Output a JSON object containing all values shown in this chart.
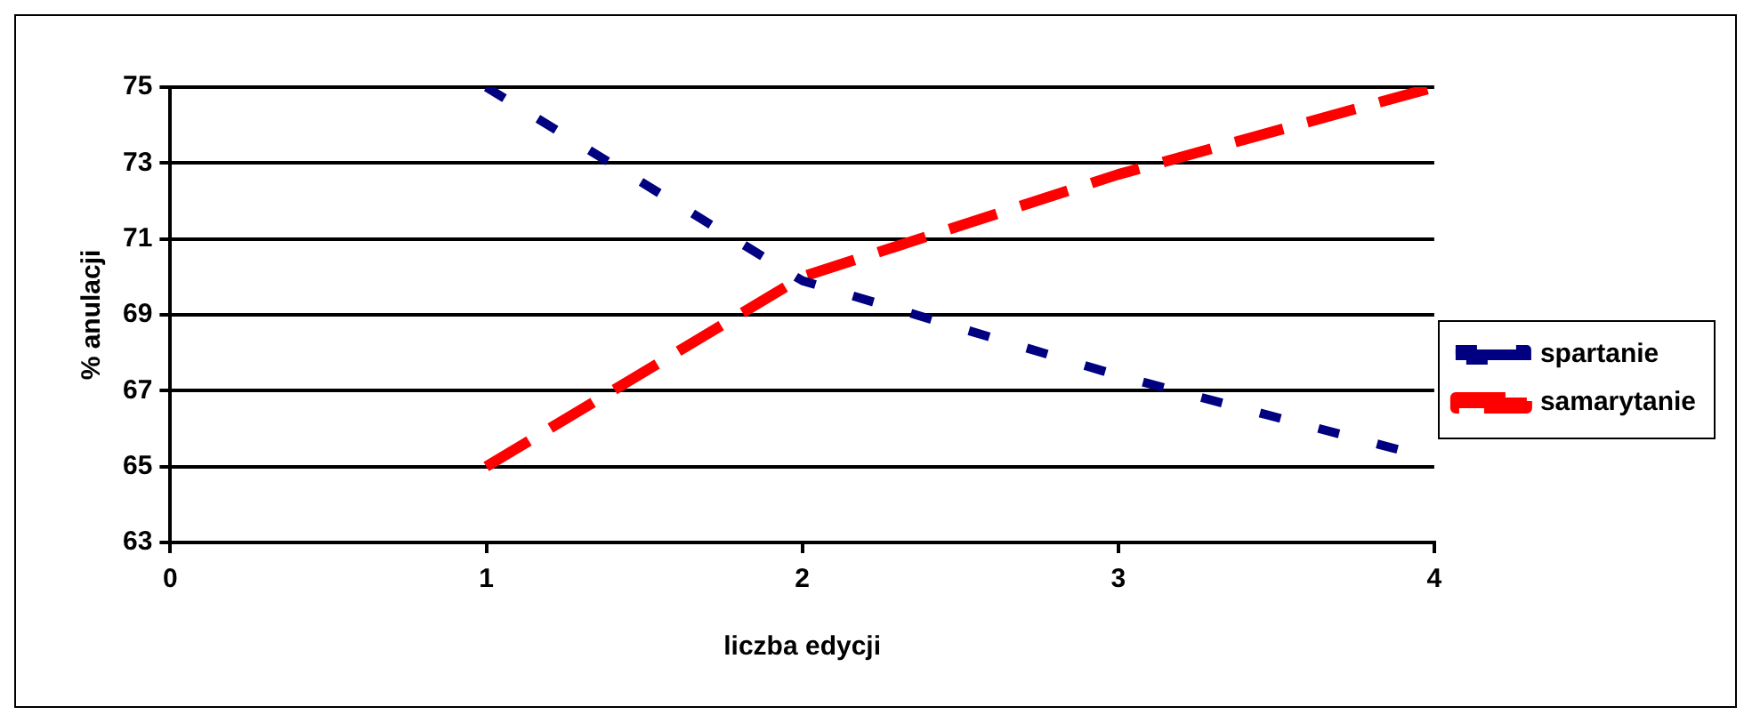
{
  "chart_data": {
    "type": "line",
    "xlabel": "liczba edycji",
    "ylabel": "% anulacji",
    "series": [
      {
        "name": "spartanie",
        "color": "#000080",
        "x": [
          1,
          2,
          3,
          4
        ],
        "values": [
          75,
          69.9,
          67.4,
          65.2
        ],
        "line_style": "dashed"
      },
      {
        "name": "samarytanie",
        "color": "#ff0000",
        "x": [
          1,
          2,
          3,
          4
        ],
        "values": [
          65,
          70,
          72.7,
          75
        ],
        "line_style": "dashed"
      }
    ],
    "xlim": [
      0,
      4
    ],
    "xticks": [
      0,
      1,
      2,
      3,
      4
    ],
    "ylim": [
      63,
      75
    ],
    "yticks": [
      63,
      65,
      67,
      69,
      71,
      73,
      75
    ],
    "grid": "y",
    "legend": "right",
    "marker": "none"
  }
}
